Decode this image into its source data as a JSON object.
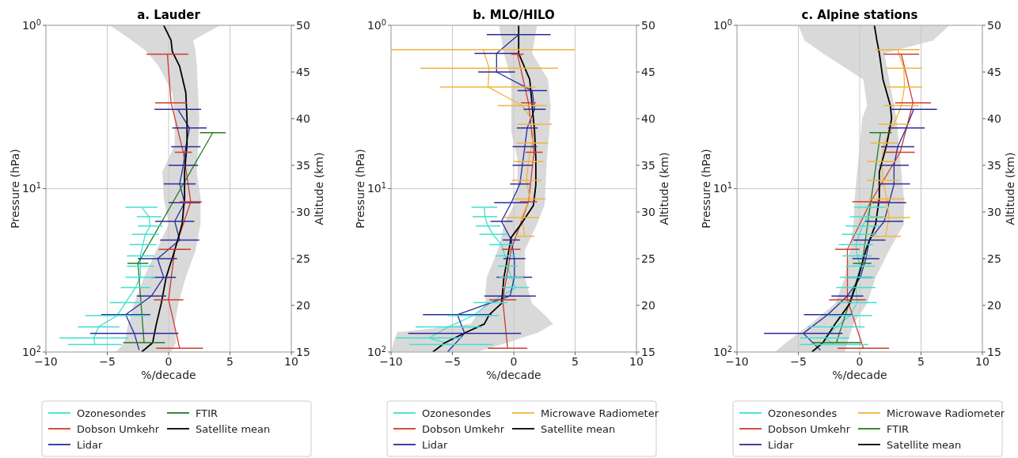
{
  "chart_data": [
    {
      "type": "line",
      "title": "a.  Lauder",
      "xlabel": "%/decade",
      "ylabel": "Pressure (hPa)",
      "y2label": "Altitude (km)",
      "xlim": [
        -10,
        10
      ],
      "xticks": [
        -10,
        -5,
        0,
        5,
        10
      ],
      "ylim": [
        100,
        1
      ],
      "yticks": [
        {
          "value": 100,
          "label": "10$^{2}$"
        },
        {
          "value": 10,
          "label": "10$^{1}$"
        },
        {
          "value": 1,
          "label": "10$^{0}$"
        }
      ],
      "log": "y",
      "y2lim": [
        15,
        50
      ],
      "y2ticks": [
        15,
        20,
        25,
        30,
        35,
        40,
        45,
        50
      ],
      "grid": true,
      "legend": "bottom",
      "series": [
        {
          "name": "Ozonesondes",
          "color": "#40e0d0",
          "axis": "y2",
          "values": [
            30.5,
            29.5,
            28.5,
            27.6,
            26.5,
            25.3,
            24.2,
            23.0,
            21.9,
            20.3,
            18.9,
            17.7,
            16.5,
            15.8
          ],
          "x": [
            -2.2,
            -1.6,
            -1.5,
            -1.9,
            -2.1,
            -2.3,
            -2.3,
            -2.3,
            -2.7,
            -3.5,
            -4.2,
            -5.7,
            -6.1,
            -6.0
          ],
          "xerrors": [
            1.3,
            1.0,
            1.0,
            1.1,
            1.1,
            1.1,
            1.1,
            1.2,
            1.2,
            1.3,
            2.6,
            1.7,
            2.8,
            2.2
          ]
        },
        {
          "name": "Dobson Umkehr",
          "color": "#d03a2a",
          "axis": "y2",
          "values": [
            46.9,
            41.7,
            36.4,
            31.1,
            26.0,
            20.6,
            15.4
          ],
          "x": [
            -0.1,
            0.2,
            1.2,
            1.8,
            0.5,
            0.0,
            0.9
          ],
          "xerrors": [
            1.7,
            1.3,
            0.7,
            0.9,
            1.3,
            1.2,
            1.9
          ]
        },
        {
          "name": "Lidar",
          "color": "#2a2a9e",
          "axis": "y2",
          "values": [
            41,
            39,
            37,
            35,
            33,
            31,
            29,
            27,
            25,
            23,
            21,
            19,
            17,
            15.2
          ],
          "x": [
            0.75,
            1.7,
            1.4,
            1.2,
            0.9,
            1.3,
            0.5,
            0.9,
            -0.9,
            -0.4,
            -1.4,
            -3.5,
            -2.8,
            -2.4
          ],
          "xerrors": [
            1.9,
            1.4,
            1.2,
            1.2,
            1.3,
            1.3,
            1.6,
            1.6,
            1.6,
            1.0,
            1.2,
            2.0,
            3.6,
            null
          ]
        },
        {
          "name": "FTIR",
          "color": "#237a23",
          "axis": "y2",
          "values": [
            38.5,
            24.5,
            16.0
          ],
          "x": [
            3.6,
            -2.5,
            -2.0
          ],
          "xerrors": [
            1.05,
            0.85,
            1.7
          ]
        },
        {
          "name": "Satellite mean",
          "color": "#000000",
          "axis": "y2",
          "values": [
            50,
            48.4,
            47.2,
            45.6,
            42.8,
            40.0,
            37.2,
            34.3,
            31.5,
            28.7,
            25.9,
            23.0,
            20.2,
            18.0,
            16.0,
            15.0
          ],
          "x": [
            -0.4,
            0.2,
            0.3,
            0.9,
            1.4,
            1.5,
            1.5,
            1.3,
            1.3,
            1.1,
            0.5,
            -0.2,
            -0.6,
            -1.0,
            -1.3,
            -2.2
          ],
          "xerrors": [
            [
              -4.8,
              4.2
            ],
            [
              -3.0,
              2.0
            ],
            [
              -1.8,
              2.2
            ],
            [
              -0.8,
              2.3
            ],
            [
              0.3,
              2.4
            ],
            [
              0.5,
              2.5
            ],
            [
              0.5,
              2.4
            ],
            [
              -0.5,
              2.3
            ],
            [
              -0.4,
              2.6
            ],
            [
              0.0,
              2.6
            ],
            [
              -1.0,
              2.2
            ],
            [
              -2.0,
              1.4
            ],
            [
              -2.8,
              0.8
            ],
            [
              -3.3,
              0.5
            ],
            [
              -3.6,
              0.6
            ],
            [
              -4.3,
              0.2
            ]
          ]
        }
      ]
    },
    {
      "type": "line",
      "title": "b.  MLO/HILO",
      "xlabel": "%/decade",
      "ylabel": "Pressure (hPa)",
      "y2label": "Altitude (km)",
      "xlim": [
        -10,
        10
      ],
      "xticks": [
        -10,
        -5,
        0,
        5,
        10
      ],
      "ylim": [
        100,
        1
      ],
      "yticks": [
        {
          "value": 100,
          "label": "10$^{2}$"
        },
        {
          "value": 10,
          "label": "10$^{1}$"
        },
        {
          "value": 1,
          "label": "10$^{0}$"
        }
      ],
      "log": "y",
      "y2lim": [
        15,
        50
      ],
      "y2ticks": [
        15,
        20,
        25,
        30,
        35,
        40,
        45,
        50
      ],
      "grid": true,
      "legend": "bottom",
      "series": [
        {
          "name": "Ozonesondes",
          "color": "#40e0d0",
          "axis": "y2",
          "values": [
            30.5,
            29.5,
            28.5,
            27.6,
            26.5,
            25.3,
            24.2,
            23.0,
            21.9,
            20.3,
            18.9,
            17.7,
            16.5,
            15.8
          ],
          "x": [
            -2.4,
            -2.35,
            -2.1,
            -1.7,
            -1.0,
            -0.7,
            -0.5,
            -0.2,
            0.15,
            -1.9,
            -3.3,
            -5.3,
            -6.9,
            -5.1
          ],
          "xerrors": [
            1.05,
            1.0,
            1.0,
            1.1,
            1.0,
            0.8,
            0.8,
            1.0,
            1.1,
            1.4,
            2.1,
            2.7,
            2.7,
            3.4
          ]
        },
        {
          "name": "Dobson Umkehr",
          "color": "#d03a2a",
          "axis": "y2",
          "values": [
            46.9,
            41.7,
            36.4,
            31.1,
            26.0,
            20.6,
            15.4
          ],
          "x": [
            0.3,
            1.2,
            1.65,
            1.2,
            -0.2,
            -0.9,
            -0.5
          ],
          "xerrors": [
            0.5,
            0.6,
            0.7,
            0.7,
            0.75,
            1.1,
            1.6
          ]
        },
        {
          "name": "Lidar",
          "color": "#2a2a9e",
          "axis": "y2",
          "values": [
            49,
            47,
            45,
            43,
            41,
            39,
            37,
            35,
            33,
            31,
            29,
            27,
            25,
            23,
            21,
            19,
            17,
            15
          ],
          "x": [
            0.4,
            -1.4,
            -1.4,
            1.5,
            1.7,
            1.1,
            0.9,
            0.7,
            0.5,
            -0.2,
            -1.0,
            -0.2,
            0.05,
            0.05,
            -0.3,
            -4.6,
            -4.0,
            -5.4
          ],
          "xerrors": [
            2.6,
            1.8,
            1.5,
            1.2,
            0.9,
            0.85,
            1.0,
            0.8,
            0.8,
            1.4,
            0.9,
            0.7,
            0.9,
            1.45,
            2.1,
            2.8,
            4.6,
            null
          ]
        },
        {
          "name": "Microwave Radiometer",
          "color": "#f0b43c",
          "axis": "y2",
          "values": [
            47.4,
            45.4,
            43.4,
            41.4,
            39.4,
            37.4,
            35.4,
            33.4,
            31.4,
            29.4,
            27.4
          ],
          "x": [
            -2.5,
            -2.0,
            -2.1,
            0.7,
            1.7,
            1.5,
            1.2,
            1.05,
            1.3,
            0.65,
            0.9
          ],
          "xerrors": [
            7.5,
            5.6,
            3.9,
            2.0,
            1.4,
            1.25,
            1.2,
            1.2,
            1.3,
            1.4,
            0.8
          ]
        },
        {
          "name": "Satellite mean",
          "color": "#000000",
          "axis": "y2",
          "values": [
            50,
            47.0,
            44.2,
            41.4,
            38.6,
            35.7,
            32.9,
            30.7,
            28.7,
            27.3,
            25.9,
            23.0,
            21.6,
            20.2,
            19.0,
            18.0,
            17.1,
            16.0,
            15.0
          ],
          "x": [
            0.4,
            0.4,
            1.3,
            1.5,
            1.7,
            1.8,
            1.8,
            1.6,
            0.6,
            -0.2,
            -0.4,
            -0.8,
            -0.9,
            -1.0,
            -2.0,
            -2.4,
            -3.9,
            -5.6,
            -6.6
          ],
          "xerrors": [
            [
              -1.2,
              1.9
            ],
            [
              -0.8,
              1.5
            ],
            [
              -0.2,
              2.8
            ],
            [
              -0.2,
              3.0
            ],
            [
              -0.2,
              2.9
            ],
            [
              0.3,
              2.7
            ],
            [
              0.3,
              2.6
            ],
            [
              0.0,
              2.5
            ],
            [
              -0.8,
              1.9
            ],
            [
              -1.0,
              1.4
            ],
            [
              -1.3,
              0.9
            ],
            [
              -2.2,
              0.9
            ],
            [
              -2.3,
              1.2
            ],
            [
              -2.3,
              1.5
            ],
            [
              -3.0,
              2.5
            ],
            [
              -3.5,
              3.2
            ],
            [
              -9.5,
              2.0
            ],
            [
              -9.8,
              -0.5
            ],
            [
              -10,
              -3
            ]
          ]
        }
      ]
    },
    {
      "type": "line",
      "title": "c.  Alpine stations",
      "xlabel": "%/decade",
      "ylabel": "Pressure (hPa)",
      "y2label": "Altitude (km)",
      "xlim": [
        -10,
        10
      ],
      "xticks": [
        -10,
        -5,
        0,
        5,
        10
      ],
      "ylim": [
        100,
        1
      ],
      "yticks": [
        {
          "value": 100,
          "label": "10$^{2}$"
        },
        {
          "value": 10,
          "label": "10$^{1}$"
        },
        {
          "value": 1,
          "label": "10$^{0}$"
        }
      ],
      "log": "y",
      "y2lim": [
        15,
        50
      ],
      "y2ticks": [
        15,
        20,
        25,
        30,
        35,
        40,
        45,
        50
      ],
      "grid": true,
      "legend": "bottom",
      "series": [
        {
          "name": "Ozonesondes",
          "color": "#40e0d0",
          "axis": "y2",
          "values": [
            30.5,
            29.5,
            28.5,
            27.6,
            26.5,
            25.3,
            24.2,
            23.0,
            21.9,
            20.3,
            18.9,
            17.7,
            16.5,
            15.8
          ],
          "x": [
            0.85,
            0.6,
            0.25,
            -0.05,
            -0.3,
            -0.2,
            0.05,
            -0.2,
            -0.3,
            -0.2,
            -0.8,
            -1.9,
            -2.85,
            -2.1
          ],
          "xerrors": [
            1.3,
            1.4,
            1.4,
            1.4,
            1.4,
            1.2,
            1.2,
            1.4,
            1.6,
            1.6,
            1.8,
            2.3,
            2.0,
            2.8
          ]
        },
        {
          "name": "Dobson Umkehr",
          "color": "#d03a2a",
          "axis": "y2",
          "values": [
            46.9,
            41.7,
            36.4,
            31.1,
            26.0,
            20.6,
            15.4
          ],
          "x": [
            3.4,
            4.35,
            3.3,
            0.9,
            -1.0,
            -1.0,
            0.3
          ],
          "xerrors": [
            1.45,
            1.45,
            1.2,
            1.5,
            1.0,
            1.5,
            2.1
          ]
        },
        {
          "name": "Lidar",
          "color": "#2a2a9e",
          "axis": "y2",
          "values": [
            41,
            39,
            37,
            35,
            33,
            31,
            29,
            27,
            25,
            23,
            21,
            19,
            17,
            15.2
          ],
          "x": [
            4.4,
            3.8,
            3.1,
            2.8,
            2.8,
            2.4,
            2.0,
            0.8,
            0.5,
            0.05,
            -1.0,
            -2.6,
            -4.6,
            -3.2
          ],
          "xerrors": [
            1.9,
            1.5,
            1.35,
            1.2,
            1.3,
            1.4,
            1.55,
            1.3,
            1.1,
            1.0,
            1.3,
            1.95,
            3.2,
            null
          ]
        },
        {
          "name": "Microwave Radiometer",
          "color": "#f0b43c",
          "axis": "y2",
          "values": [
            47.4,
            45.4,
            43.4,
            41.4,
            39.4,
            37.4,
            35.4,
            33.4,
            31.4,
            29.4,
            27.4
          ],
          "x": [
            3.1,
            3.6,
            3.65,
            3.4,
            2.8,
            2.0,
            1.8,
            1.9,
            2.2,
            2.4,
            2.1
          ],
          "xerrors": [
            1.8,
            1.5,
            1.45,
            1.4,
            1.3,
            1.1,
            1.2,
            1.3,
            1.45,
            1.7,
            1.25
          ]
        },
        {
          "name": "FTIR",
          "color": "#237a23",
          "axis": "y2",
          "values": [
            38.5,
            24.5,
            16.0
          ],
          "x": [
            1.7,
            0.2,
            -1.9
          ],
          "xerrors": [
            0.9,
            0.75,
            2.0
          ]
        },
        {
          "name": "Satellite mean",
          "color": "#000000",
          "axis": "y2",
          "values": [
            50,
            48.4,
            47.0,
            44.2,
            41.4,
            40.0,
            37.2,
            34.3,
            31.5,
            28.7,
            25.9,
            23.0,
            20.2,
            18.0,
            16.0,
            15.0
          ],
          "x": [
            1.2,
            1.4,
            1.6,
            1.9,
            2.5,
            2.6,
            2.2,
            1.6,
            1.6,
            1.3,
            0.5,
            -0.1,
            -0.8,
            -2.0,
            -3.0,
            -3.9
          ],
          "xerrors": [
            [
              -5.0,
              7.3
            ],
            [
              -4.5,
              6.0
            ],
            [
              -3.0,
              2.0
            ],
            [
              0.3,
              2.4
            ],
            [
              0.6,
              2.8
            ],
            [
              0.2,
              3.0
            ],
            [
              0.0,
              3.2
            ],
            [
              -0.2,
              3.4
            ],
            [
              -0.4,
              3.6
            ],
            [
              -0.5,
              3.6
            ],
            [
              -0.8,
              2.4
            ],
            [
              -1.2,
              1.3
            ],
            [
              -2.0,
              0.6
            ],
            [
              -4.0,
              -0.5
            ],
            [
              -6.0,
              -1.0
            ],
            [
              -6.9,
              -1.2
            ]
          ]
        }
      ]
    }
  ]
}
